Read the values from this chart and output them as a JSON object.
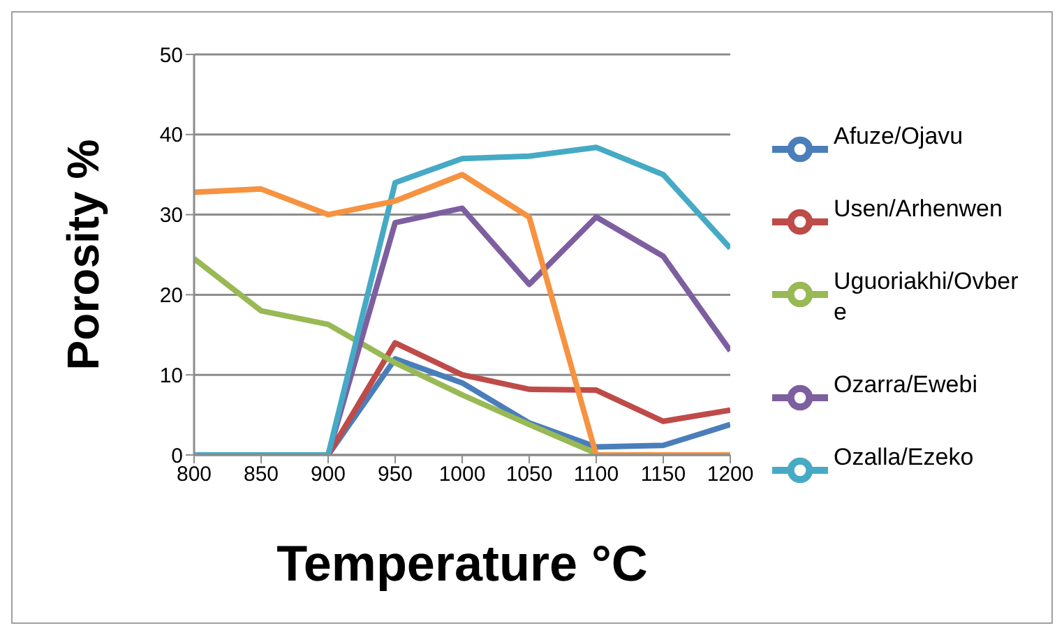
{
  "chart_data": {
    "type": "line",
    "xlabel": "Temperature °C",
    "ylabel": "Porosity %",
    "x": [
      800,
      850,
      900,
      950,
      1000,
      1050,
      1100,
      1150,
      1200
    ],
    "series": [
      {
        "name": "Afuze/Ojavu",
        "color": "#4a7ebb",
        "values": [
          0,
          0,
          0,
          12,
          9,
          4,
          1,
          1.2,
          3.8
        ]
      },
      {
        "name": "Usen/Arhenwen",
        "color": "#be4b48",
        "values": [
          0,
          0,
          0,
          14,
          10,
          8.2,
          8.1,
          4.2,
          5.6
        ]
      },
      {
        "name": "Uguoriakhi/Ovbere",
        "color": "#98b954",
        "values": [
          24.5,
          18,
          16.3,
          11.5,
          7.5,
          3.8,
          0.2,
          null,
          null
        ]
      },
      {
        "name": "Ozarra/Ewebi",
        "color": "#7d5fa0",
        "values": [
          0,
          0,
          0,
          29,
          30.8,
          21.3,
          29.7,
          24.8,
          13
        ]
      },
      {
        "name": "Ozalla/Ezeko",
        "color": "#46aac5",
        "values": [
          0,
          0,
          0,
          34,
          37,
          37.3,
          38.4,
          35,
          25.8
        ]
      },
      {
        "color": "#f69240",
        "values": [
          32.8,
          33.2,
          30,
          31.7,
          35,
          29.7,
          0,
          0,
          0
        ]
      }
    ],
    "xlim": [
      800,
      1200
    ],
    "xticks": [
      800,
      850,
      900,
      950,
      1000,
      1050,
      1100,
      1150,
      1200
    ],
    "ylim": [
      0,
      50
    ],
    "yticks": [
      0,
      10,
      20,
      30,
      40,
      50
    ],
    "grid": "y",
    "legend": "right",
    "marker": "none",
    "line_style": "solid"
  }
}
